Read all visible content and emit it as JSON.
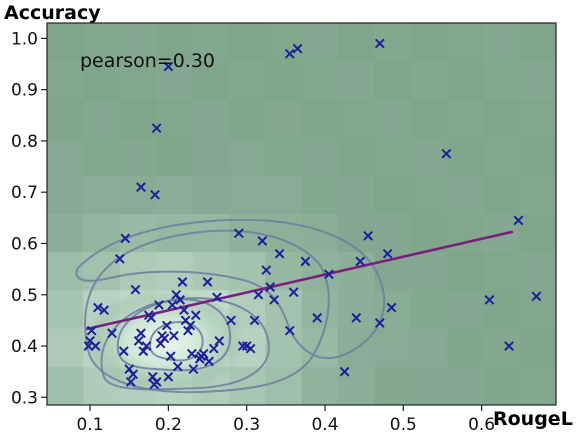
{
  "chart_data": {
    "type": "scatter",
    "xlabel": "RougeL",
    "ylabel": "Accuracy",
    "annotation": "pearson=0.30",
    "xlim": [
      0.045,
      0.695
    ],
    "ylim": [
      0.285,
      1.03
    ],
    "xticks": [
      0.1,
      0.2,
      0.3,
      0.4,
      0.5,
      0.6
    ],
    "xtick_labels": [
      "0.1",
      "0.2",
      "0.3",
      "0.4",
      "0.5",
      "0.6"
    ],
    "yticks": [
      0.3,
      0.4,
      0.5,
      0.6,
      0.7,
      0.8,
      0.9,
      1.0
    ],
    "ytick_labels": [
      "0.3",
      "0.4",
      "0.5",
      "0.6",
      "0.7",
      "0.8",
      "0.9",
      "1.0"
    ],
    "colors": {
      "background": "#7fa58a",
      "marker": "#1f1f9e",
      "trendline": "#7a1f7e",
      "contour": "#6d7da0",
      "density_high": "#e3f2ea"
    },
    "marker": "x",
    "trendline": {
      "x": [
        0.095,
        0.64
      ],
      "y": [
        0.433,
        0.623
      ]
    },
    "points": [
      [
        0.1,
        0.41
      ],
      [
        0.098,
        0.4
      ],
      [
        0.107,
        0.4
      ],
      [
        0.102,
        0.43
      ],
      [
        0.11,
        0.475
      ],
      [
        0.118,
        0.47
      ],
      [
        0.128,
        0.425
      ],
      [
        0.138,
        0.57
      ],
      [
        0.145,
        0.61
      ],
      [
        0.143,
        0.39
      ],
      [
        0.15,
        0.355
      ],
      [
        0.152,
        0.33
      ],
      [
        0.155,
        0.345
      ],
      [
        0.158,
        0.51
      ],
      [
        0.162,
        0.41
      ],
      [
        0.165,
        0.425
      ],
      [
        0.168,
        0.39
      ],
      [
        0.172,
        0.4
      ],
      [
        0.175,
        0.46
      ],
      [
        0.178,
        0.455
      ],
      [
        0.18,
        0.34
      ],
      [
        0.182,
        0.325
      ],
      [
        0.185,
        0.33
      ],
      [
        0.188,
        0.48
      ],
      [
        0.19,
        0.405
      ],
      [
        0.192,
        0.42
      ],
      [
        0.195,
        0.415
      ],
      [
        0.198,
        0.44
      ],
      [
        0.2,
        0.34
      ],
      [
        0.203,
        0.38
      ],
      [
        0.205,
        0.48
      ],
      [
        0.207,
        0.42
      ],
      [
        0.21,
        0.5
      ],
      [
        0.212,
        0.36
      ],
      [
        0.215,
        0.49
      ],
      [
        0.218,
        0.525
      ],
      [
        0.22,
        0.47
      ],
      [
        0.222,
        0.45
      ],
      [
        0.225,
        0.43
      ],
      [
        0.228,
        0.44
      ],
      [
        0.23,
        0.385
      ],
      [
        0.232,
        0.355
      ],
      [
        0.235,
        0.46
      ],
      [
        0.24,
        0.375
      ],
      [
        0.242,
        0.38
      ],
      [
        0.245,
        0.385
      ],
      [
        0.25,
        0.525
      ],
      [
        0.252,
        0.37
      ],
      [
        0.258,
        0.395
      ],
      [
        0.262,
        0.495
      ],
      [
        0.265,
        0.41
      ],
      [
        0.28,
        0.45
      ],
      [
        0.29,
        0.62
      ],
      [
        0.295,
        0.4
      ],
      [
        0.3,
        0.4
      ],
      [
        0.305,
        0.395
      ],
      [
        0.31,
        0.45
      ],
      [
        0.315,
        0.5
      ],
      [
        0.32,
        0.605
      ],
      [
        0.325,
        0.548
      ],
      [
        0.33,
        0.515
      ],
      [
        0.335,
        0.49
      ],
      [
        0.342,
        0.58
      ],
      [
        0.355,
        0.43
      ],
      [
        0.36,
        0.505
      ],
      [
        0.375,
        0.565
      ],
      [
        0.39,
        0.455
      ],
      [
        0.405,
        0.54
      ],
      [
        0.425,
        0.35
      ],
      [
        0.44,
        0.455
      ],
      [
        0.445,
        0.565
      ],
      [
        0.455,
        0.615
      ],
      [
        0.47,
        0.445
      ],
      [
        0.48,
        0.58
      ],
      [
        0.485,
        0.475
      ],
      [
        0.61,
        0.49
      ],
      [
        0.635,
        0.4
      ],
      [
        0.647,
        0.645
      ],
      [
        0.67,
        0.497
      ],
      [
        0.165,
        0.71
      ],
      [
        0.183,
        0.695
      ],
      [
        0.185,
        0.825
      ],
      [
        0.2,
        0.945
      ],
      [
        0.355,
        0.97
      ],
      [
        0.365,
        0.98
      ],
      [
        0.47,
        0.99
      ],
      [
        0.555,
        0.775
      ]
    ]
  }
}
